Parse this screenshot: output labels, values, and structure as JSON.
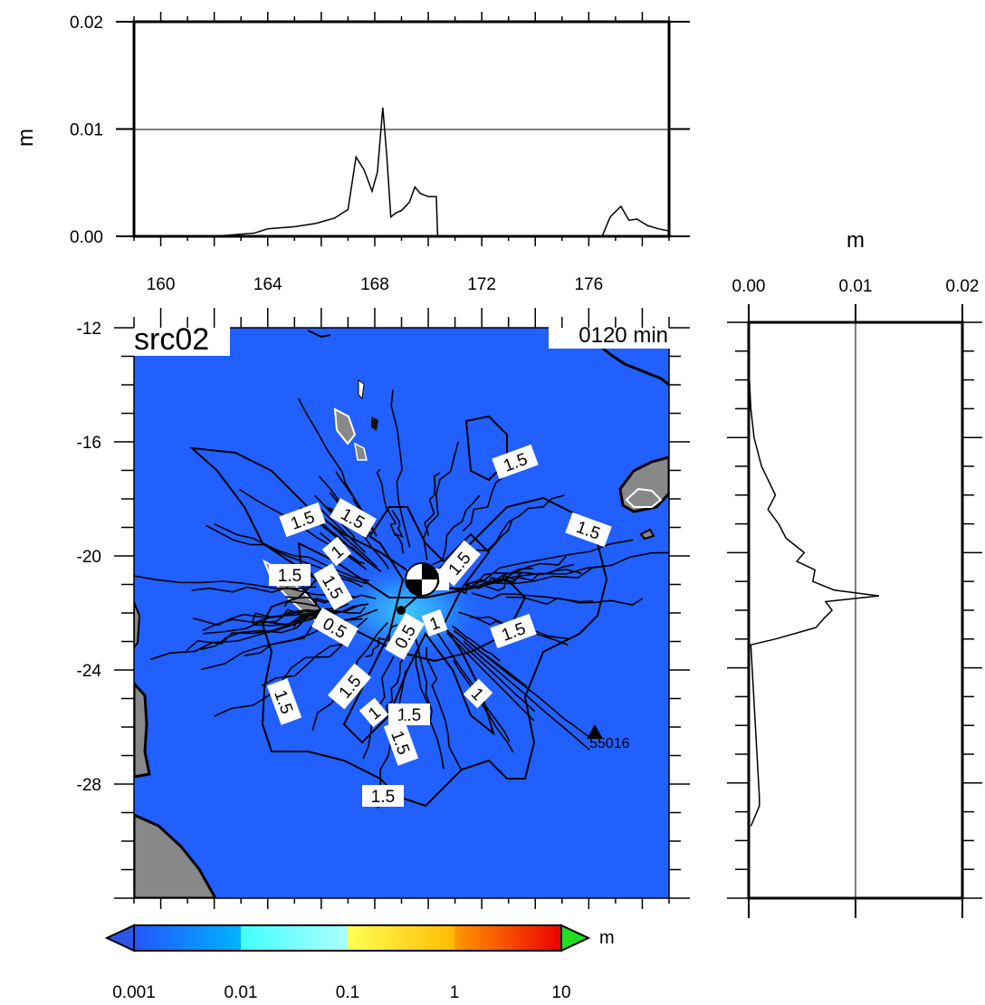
{
  "map": {
    "title": "src02",
    "time_label": "0120 min",
    "station_label": "55016",
    "lon_ticks": [
      "160",
      "164",
      "168",
      "172",
      "176"
    ],
    "lat_ticks": [
      "-12",
      "-16",
      "-20",
      "-24",
      "-28"
    ],
    "contour_labels": [
      "1.5",
      "1.5",
      "1.5",
      "1.5",
      "1",
      "1.5",
      "1.5",
      "1",
      "0.5",
      "0.5",
      "1",
      "1.5",
      "1.5",
      "1.5",
      "1.5",
      "1",
      "1.5",
      "1.5",
      "1.5",
      "1.5"
    ],
    "colors": {
      "ocean": "#2160ff",
      "land": "#888888",
      "wave_light": "#3dc8ff"
    }
  },
  "top_panel": {
    "ylabel": "m",
    "y_ticks": [
      "0.00",
      "0.01",
      "0.02"
    ]
  },
  "right_panel": {
    "xlabel": "m",
    "x_ticks": [
      "0.00",
      "0.01",
      "0.02"
    ]
  },
  "colorbar": {
    "unit": "m",
    "tick_labels": [
      "0.001",
      "0.01",
      "0.1",
      "1",
      "10"
    ],
    "colors": [
      "#2255ff",
      "#00b4ff",
      "#44ffff",
      "#ffee44",
      "#ff8800",
      "#ee0000"
    ],
    "under_color": "#2d55e6",
    "over_color": "#22dd22"
  },
  "chart_data": [
    {
      "type": "line",
      "title": "",
      "xlabel": "",
      "ylabel": "m",
      "xlim": [
        159,
        179
      ],
      "ylim": [
        0,
        0.02
      ],
      "series": [
        {
          "x": [
            159,
            160,
            162,
            163.5,
            164,
            165,
            165.8,
            166.5,
            167,
            167.3,
            167.6,
            167.9,
            168.1,
            168.3,
            168.45,
            168.6,
            168.8,
            169,
            169.3,
            169.5,
            169.7,
            170,
            170.3,
            170.35,
            170.5,
            176.5,
            176.8,
            177.2,
            177.5,
            177.8,
            178.2,
            178.6,
            179
          ],
          "y": [
            0,
            0,
            0,
            0.0003,
            0.0007,
            0.0009,
            0.0012,
            0.0017,
            0.0025,
            0.0074,
            0.0062,
            0.0042,
            0.006,
            0.012,
            0.0075,
            0.0018,
            0.0022,
            0.0024,
            0.0032,
            0.0046,
            0.004,
            0.0037,
            0.0037,
            0.0001,
            0,
            0,
            0.0018,
            0.0028,
            0.0015,
            0.0016,
            0.001,
            0.0007,
            0.0005
          ]
        }
      ]
    },
    {
      "type": "line",
      "title": "",
      "xlabel": "m",
      "ylabel": "",
      "xlim": [
        0,
        0.02
      ],
      "ylim": [
        -32,
        -12
      ],
      "series": [
        {
          "lat": [
            -13.5,
            -15,
            -16,
            -17,
            -18,
            -18.5,
            -19,
            -19.5,
            -20,
            -20.3,
            -20.6,
            -21,
            -21.3,
            -21.5,
            -21.7,
            -22,
            -22.3,
            -22.6,
            -23,
            -23.2,
            -28.5,
            -28.8,
            -29.5
          ],
          "y": [
            0,
            0.0002,
            0.0005,
            0.0012,
            0.0025,
            0.0018,
            0.0028,
            0.0035,
            0.0052,
            0.0045,
            0.0062,
            0.006,
            0.008,
            0.0122,
            0.0072,
            0.0078,
            0.007,
            0.0063,
            0.0025,
            0.0002,
            0.001,
            0.001,
            0.0002
          ]
        }
      ]
    }
  ]
}
